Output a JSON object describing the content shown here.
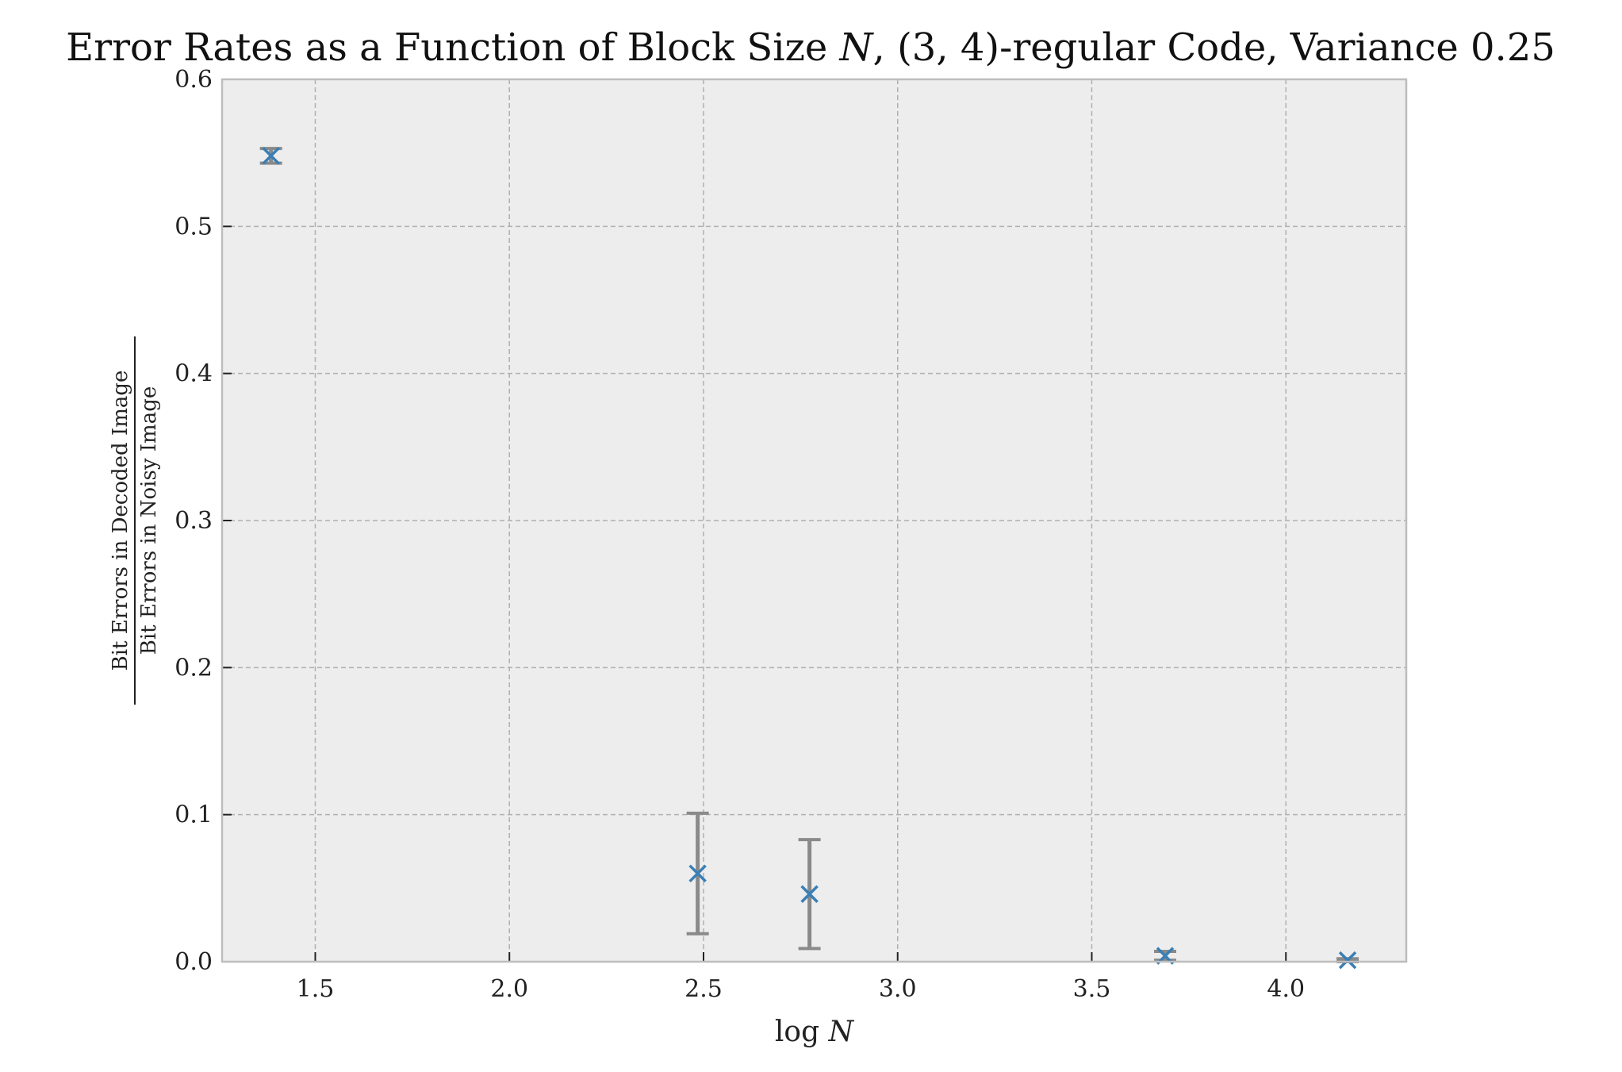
{
  "chart_data": {
    "type": "scatter",
    "title": "Error Rates as a Function of Block Size N, (3, 4)-regular Code, Variance 0.25",
    "xlabel": "log N",
    "ylabel_numerator": "Bit Errors in Decoded Image",
    "ylabel_denominator": "Bit Errors in Noisy Image",
    "xlim": [
      1.26,
      4.31
    ],
    "ylim": [
      0.0,
      0.6
    ],
    "xticks": [
      "1.5",
      "2.0",
      "2.5",
      "3.0",
      "3.5",
      "4.0"
    ],
    "xtick_values": [
      1.5,
      2.0,
      2.5,
      3.0,
      3.5,
      4.0
    ],
    "yticks": [
      "0.0",
      "0.1",
      "0.2",
      "0.3",
      "0.4",
      "0.5",
      "0.6"
    ],
    "ytick_values": [
      0.0,
      0.1,
      0.2,
      0.3,
      0.4,
      0.5,
      0.6
    ],
    "grid": true,
    "points": [
      {
        "x": 1.386,
        "y": 0.548,
        "yerr": 0.005
      },
      {
        "x": 2.485,
        "y": 0.06,
        "yerr": 0.041
      },
      {
        "x": 2.773,
        "y": 0.046,
        "yerr": 0.037
      },
      {
        "x": 3.689,
        "y": 0.004,
        "yerr": 0.003
      },
      {
        "x": 4.159,
        "y": 0.001,
        "yerr": 0.001
      }
    ],
    "colors": {
      "marker": "#3a7fb5",
      "errorbar": "#8a8a8a",
      "plot_bg": "#ededed",
      "grid": "#b0b0b0",
      "spine": "#bdbdbd"
    }
  }
}
